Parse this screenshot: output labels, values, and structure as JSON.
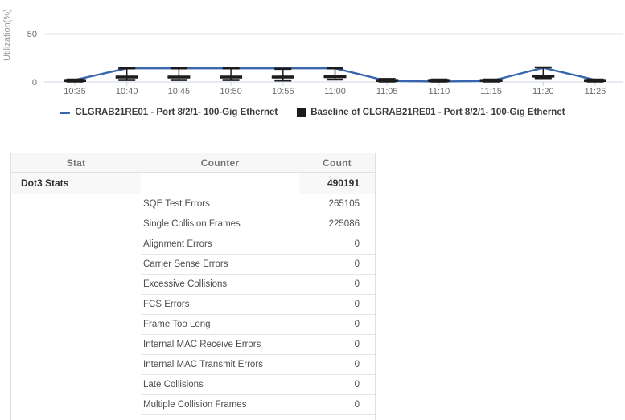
{
  "chart_data": {
    "type": "line",
    "title": "",
    "xlabel": "",
    "ylabel": "Utilization(%)",
    "x": [
      "10:35",
      "10:40",
      "10:45",
      "10:50",
      "10:55",
      "11:00",
      "11:05",
      "11:10",
      "11:15",
      "11:20",
      "11:25"
    ],
    "y_ticks": [
      0,
      50
    ],
    "ylim": [
      0,
      85
    ],
    "grid": "horizontal",
    "legend_position": "bottom",
    "series": [
      {
        "name": "CLGRAB21RE01 - Port 8/2/1- 100-Gig Ethernet",
        "type": "line",
        "color": "#3a66ad",
        "values": [
          2,
          14,
          14,
          14,
          14,
          14,
          1,
          0.5,
          1,
          14.5,
          2
        ]
      },
      {
        "name": "Baseline of CLGRAB21RE01 - Port 8/2/1- 100-Gig Ethernet",
        "type": "baseline-range",
        "color": "#1c1c1c",
        "high": [
          2.5,
          14,
          14,
          14,
          13.5,
          14,
          3,
          2.5,
          2.5,
          15,
          2.5
        ],
        "avg": [
          1.5,
          5,
          5,
          5,
          5,
          5.5,
          1.5,
          1.5,
          1.5,
          6,
          1.5
        ],
        "low": [
          0.5,
          2,
          2,
          2,
          1.5,
          2.5,
          0.5,
          0.5,
          0.5,
          4,
          0.5
        ]
      }
    ]
  },
  "colors": {
    "series_blue": "#3a66ad",
    "baseline_black": "#1c1c1c",
    "grid_line": "#e4e4e4",
    "axis_line": "#dde4ef",
    "tick_mark": "#c9d5e6",
    "tick_text": "#6c6c6c",
    "axis_title_text": "#9a9a9a"
  },
  "table": {
    "columns": [
      "Stat",
      "Counter",
      "Count"
    ],
    "group_row": {
      "stat": "Dot3 Stats",
      "counter": "",
      "count": "490191"
    },
    "rows": [
      {
        "counter": "SQE Test Errors",
        "count": "265105"
      },
      {
        "counter": "Single Collision Frames",
        "count": "225086"
      },
      {
        "counter": "Alignment Errors",
        "count": "0"
      },
      {
        "counter": "Carrier Sense Errors",
        "count": "0"
      },
      {
        "counter": "Excessive Collisions",
        "count": "0"
      },
      {
        "counter": "FCS Errors",
        "count": "0"
      },
      {
        "counter": "Frame Too Long",
        "count": "0"
      },
      {
        "counter": "Internal MAC Receive Errors",
        "count": "0"
      },
      {
        "counter": "Internal MAC Transmit Errors",
        "count": "0"
      },
      {
        "counter": "Late Collisions",
        "count": "0"
      },
      {
        "counter": "Multiple Collision Frames",
        "count": "0"
      }
    ]
  }
}
